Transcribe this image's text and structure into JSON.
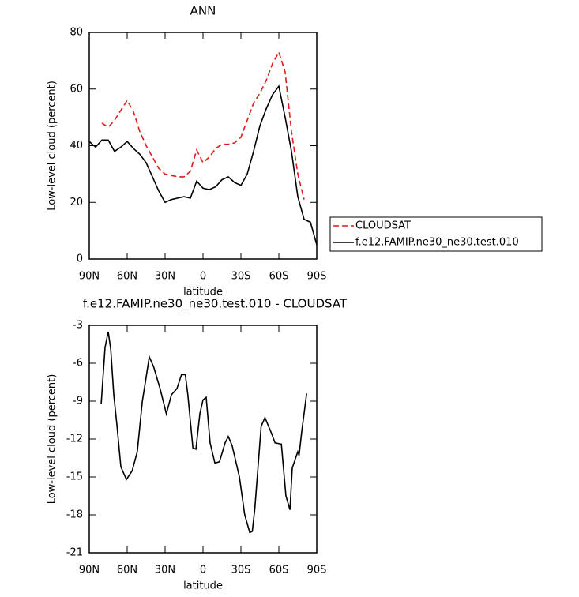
{
  "chart_data": [
    {
      "type": "line",
      "title": "ANN",
      "xlabel": "latitude",
      "ylabel": "Low-level cloud (percent)",
      "xlim": [
        90,
        -90
      ],
      "xticks": [
        {
          "value": 90,
          "label": "90N"
        },
        {
          "value": 60,
          "label": "60N"
        },
        {
          "value": 30,
          "label": "30N"
        },
        0,
        {
          "value": -30,
          "label": "30S"
        },
        {
          "value": -60,
          "label": "60S"
        },
        {
          "value": -90,
          "label": "90S"
        }
      ],
      "ylim": [
        0,
        80
      ],
      "yticks": [
        0,
        20,
        40,
        60,
        80
      ],
      "legend": "outside-right",
      "series": [
        {
          "name": "CLOUDSAT",
          "color": "#e41a1c",
          "dash": true,
          "x": [
            80,
            75,
            70,
            65,
            60,
            55,
            50,
            45,
            40,
            35,
            30,
            25,
            20,
            15,
            10,
            5,
            0,
            -5,
            -10,
            -15,
            -20,
            -25,
            -30,
            -35,
            -40,
            -45,
            -50,
            -55,
            -60,
            -65,
            -70,
            -75,
            -80
          ],
          "values": [
            48,
            46.5,
            49,
            52.5,
            56,
            52,
            45,
            40,
            36,
            32,
            30,
            29.5,
            29,
            29,
            31,
            38.5,
            34,
            36,
            39,
            40.5,
            40.5,
            41,
            43,
            49,
            55,
            58.5,
            63,
            69,
            73,
            66,
            45,
            30,
            21
          ]
        },
        {
          "name": "f.e12.FAMIP.ne30_ne30.test.010",
          "color": "#000000",
          "dash": false,
          "x": [
            90,
            85,
            80,
            75,
            70,
            65,
            60,
            55,
            50,
            45,
            40,
            35,
            30,
            25,
            20,
            15,
            10,
            5,
            0,
            -5,
            -10,
            -15,
            -20,
            -25,
            -30,
            -35,
            -40,
            -45,
            -50,
            -55,
            -60,
            -65,
            -70,
            -75,
            -80,
            -85,
            -90
          ],
          "values": [
            41.5,
            39.5,
            42,
            42,
            38,
            39.5,
            41.5,
            39,
            37,
            34,
            29,
            24,
            20,
            21,
            21.5,
            22,
            21.5,
            27.5,
            25,
            24.5,
            25.5,
            28,
            29,
            27,
            26,
            30,
            38,
            47,
            53,
            58,
            61,
            50,
            38,
            22,
            14,
            13,
            5
          ]
        }
      ]
    },
    {
      "type": "line",
      "title": "f.e12.FAMIP.ne30_ne30.test.010 - CLOUDSAT",
      "xlabel": "latitude",
      "ylabel": "Low-level cloud (percent)",
      "xlim": [
        90,
        -90
      ],
      "xticks": [
        {
          "value": 90,
          "label": "90N"
        },
        {
          "value": 60,
          "label": "60N"
        },
        {
          "value": 30,
          "label": "30N"
        },
        0,
        {
          "value": -30,
          "label": "30S"
        },
        {
          "value": -60,
          "label": "60S"
        },
        {
          "value": -90,
          "label": "90S"
        }
      ],
      "ylim": [
        -21,
        -3
      ],
      "yticks": [
        -21,
        -18,
        -15,
        -12,
        -9,
        -6,
        -3
      ],
      "color": "#000000",
      "x": [
        80.6,
        77.5,
        75,
        73,
        70.6,
        68,
        65,
        60.6,
        56,
        52,
        48,
        45.6,
        42.5,
        39,
        34,
        29,
        25,
        20.6,
        17,
        14,
        12,
        8,
        5.6,
        2.5,
        0,
        -2.5,
        -5.6,
        -9.4,
        -13,
        -17.5,
        -20,
        -23,
        -28.8,
        -33,
        -37,
        -39,
        -41,
        -46,
        -49,
        -54,
        -57,
        -62,
        -65.6,
        -68.8,
        -70.6,
        -75,
        -76,
        -78,
        -82
      ],
      "values": [
        -9.25,
        -4.75,
        -3.5,
        -4.9,
        -8.5,
        -11,
        -14.2,
        -15.2,
        -14.5,
        -13,
        -9,
        -7.5,
        -5.5,
        -6.3,
        -8,
        -10,
        -8.5,
        -8,
        -6.9,
        -6.9,
        -8.5,
        -12.7,
        -12.8,
        -10,
        -8.9,
        -8.7,
        -12.3,
        -13.9,
        -13.8,
        -12.3,
        -11.8,
        -12.5,
        -15,
        -18,
        -19.4,
        -19.3,
        -17.5,
        -11,
        -10.3,
        -11.5,
        -12.3,
        -12.4,
        -16.5,
        -17.6,
        -14.3,
        -13,
        -13.3,
        -11.5,
        -8.4
      ]
    }
  ]
}
